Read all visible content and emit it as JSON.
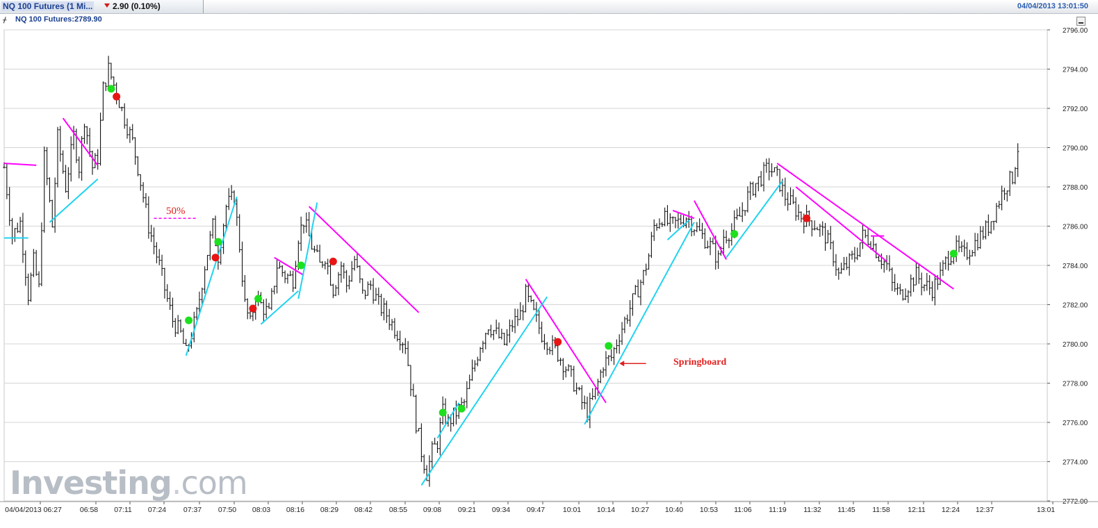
{
  "header": {
    "tab_title": "NQ 100 Futures (1 Mi...",
    "change": "2.90 (0.10%)",
    "timestamp": "04/04/2013 13:01:50",
    "instrument": "NQ 100 Futures:2789.90"
  },
  "watermark": {
    "brand": "Investing",
    "suffix": "com"
  },
  "colors": {
    "bars": "#111111",
    "grid": "#d4d4d4",
    "down_trend": "#ff00ff",
    "up_trend": "#1fd3f0",
    "buy_dot": "#1ee01e",
    "sell_dot": "#e81515",
    "annotation": "#e0201f"
  },
  "chart_data": {
    "type": "bar",
    "title": "NQ 100 Futures (1 Min)",
    "ylim": [
      2772,
      2796
    ],
    "y_ticks": [
      "2772.00",
      "2774.00",
      "2776.00",
      "2778.00",
      "2780.00",
      "2782.00",
      "2784.00",
      "2786.00",
      "2788.00",
      "2790.00",
      "2792.00",
      "2794.00",
      "2796.00"
    ],
    "x_ticks": [
      "04/04/2013 06:27",
      "06:58",
      "07:11",
      "07:24",
      "07:37",
      "07:50",
      "08:03",
      "08:16",
      "08:29",
      "08:42",
      "08:55",
      "09:08",
      "09:21",
      "09:34",
      "09:47",
      "10:01",
      "10:14",
      "10:27",
      "10:40",
      "10:53",
      "11:06",
      "11:19",
      "11:32",
      "11:45",
      "11:58",
      "12:11",
      "12:24",
      "12:37",
      "13:01"
    ],
    "x_range": [
      0,
      390
    ],
    "price_path": [
      [
        0,
        2789.0
      ],
      [
        3,
        2785.5
      ],
      [
        6,
        2786.2
      ],
      [
        9,
        2782.5
      ],
      [
        11,
        2784.2
      ],
      [
        13,
        2782.8
      ],
      [
        15,
        2789.5
      ],
      [
        18,
        2786.0
      ],
      [
        20,
        2790.5
      ],
      [
        23,
        2788.0
      ],
      [
        26,
        2790.6
      ],
      [
        28,
        2789.0
      ],
      [
        30,
        2791.5
      ],
      [
        33,
        2789.0
      ],
      [
        35,
        2789.5
      ],
      [
        37,
        2793.0
      ],
      [
        39,
        2794.0
      ],
      [
        42,
        2792.8
      ],
      [
        45,
        2791.5
      ],
      [
        48,
        2790.3
      ],
      [
        50,
        2789.0
      ],
      [
        54,
        2786.0
      ],
      [
        58,
        2784.0
      ],
      [
        60,
        2782.8
      ],
      [
        63,
        2781.2
      ],
      [
        66,
        2780.5
      ],
      [
        68,
        2779.5
      ],
      [
        72,
        2781.5
      ],
      [
        75,
        2784.0
      ],
      [
        78,
        2786.0
      ],
      [
        80,
        2784.5
      ],
      [
        83,
        2787.0
      ],
      [
        86,
        2787.5
      ],
      [
        88,
        2785.0
      ],
      [
        90,
        2782.0
      ],
      [
        92,
        2781.0
      ],
      [
        94,
        2782.5
      ],
      [
        96,
        2782.0
      ],
      [
        99,
        2781.5
      ],
      [
        102,
        2784.0
      ],
      [
        105,
        2783.5
      ],
      [
        108,
        2783.3
      ],
      [
        110,
        2785.5
      ],
      [
        112,
        2786.3
      ],
      [
        115,
        2785.0
      ],
      [
        118,
        2784.0
      ],
      [
        120,
        2784.5
      ],
      [
        123,
        2782.8
      ],
      [
        126,
        2784.0
      ],
      [
        128,
        2783.0
      ],
      [
        131,
        2784.3
      ],
      [
        134,
        2782.5
      ],
      [
        137,
        2783.0
      ],
      [
        140,
        2782.0
      ],
      [
        143,
        2781.5
      ],
      [
        146,
        2780.8
      ],
      [
        150,
        2780.0
      ],
      [
        152,
        2778.0
      ],
      [
        154,
        2776.0
      ],
      [
        156,
        2774.5
      ],
      [
        158,
        2773.4
      ],
      [
        160,
        2774.5
      ],
      [
        162,
        2775.0
      ],
      [
        164,
        2776.5
      ],
      [
        166,
        2776.0
      ],
      [
        169,
        2776.5
      ],
      [
        172,
        2777.0
      ],
      [
        175,
        2778.5
      ],
      [
        178,
        2780.0
      ],
      [
        181,
        2781.0
      ],
      [
        184,
        2780.5
      ],
      [
        187,
        2780.0
      ],
      [
        190,
        2781.0
      ],
      [
        193,
        2781.5
      ],
      [
        195,
        2782.5
      ],
      [
        198,
        2781.5
      ],
      [
        201,
        2780.5
      ],
      [
        204,
        2780.0
      ],
      [
        207,
        2779.5
      ],
      [
        210,
        2778.8
      ],
      [
        213,
        2778.0
      ],
      [
        216,
        2777.0
      ],
      [
        218,
        2776.5
      ],
      [
        221,
        2777.5
      ],
      [
        224,
        2779.0
      ],
      [
        227,
        2779.3
      ],
      [
        230,
        2780.5
      ],
      [
        233,
        2781.5
      ],
      [
        236,
        2782.5
      ],
      [
        239,
        2783.5
      ],
      [
        241,
        2784.5
      ],
      [
        243,
        2786.0
      ],
      [
        246,
        2786.5
      ],
      [
        249,
        2786.0
      ],
      [
        252,
        2786.2
      ],
      [
        255,
        2786.5
      ],
      [
        258,
        2786.0
      ],
      [
        261,
        2785.5
      ],
      [
        264,
        2785.0
      ],
      [
        267,
        2784.3
      ],
      [
        269,
        2785.5
      ],
      [
        272,
        2785.8
      ],
      [
        275,
        2786.5
      ],
      [
        278,
        2787.5
      ],
      [
        280,
        2788.0
      ],
      [
        283,
        2788.5
      ],
      [
        286,
        2789.0
      ],
      [
        289,
        2788.5
      ],
      [
        292,
        2787.5
      ],
      [
        295,
        2787.0
      ],
      [
        298,
        2786.5
      ],
      [
        301,
        2786.3
      ],
      [
        304,
        2786.0
      ],
      [
        307,
        2785.5
      ],
      [
        310,
        2784.5
      ],
      [
        312,
        2783.5
      ],
      [
        315,
        2784.0
      ],
      [
        318,
        2784.5
      ],
      [
        321,
        2785.5
      ],
      [
        324,
        2785.3
      ],
      [
        327,
        2784.5
      ],
      [
        330,
        2784.0
      ],
      [
        332,
        2783.0
      ],
      [
        335,
        2782.5
      ],
      [
        338,
        2783.0
      ],
      [
        341,
        2783.5
      ],
      [
        344,
        2783.0
      ],
      [
        347,
        2782.8
      ],
      [
        350,
        2783.5
      ],
      [
        353,
        2784.5
      ],
      [
        356,
        2784.8
      ],
      [
        359,
        2784.5
      ],
      [
        362,
        2785.0
      ],
      [
        365,
        2785.5
      ],
      [
        368,
        2786.0
      ],
      [
        371,
        2787.0
      ],
      [
        374,
        2788.0
      ],
      [
        377,
        2788.5
      ],
      [
        379,
        2790.0
      ]
    ],
    "buy_signals": [
      [
        40,
        2793.0
      ],
      [
        69,
        2781.2
      ],
      [
        80,
        2785.2
      ],
      [
        95,
        2782.3
      ],
      [
        111,
        2784.0
      ],
      [
        164,
        2776.5
      ],
      [
        171,
        2776.7
      ],
      [
        226,
        2779.9
      ],
      [
        273,
        2785.6
      ],
      [
        355,
        2784.6
      ]
    ],
    "sell_signals": [
      [
        42,
        2792.6
      ],
      [
        79,
        2784.4
      ],
      [
        93,
        2781.8
      ],
      [
        123,
        2784.2
      ],
      [
        207,
        2780.1
      ],
      [
        300,
        2786.4
      ]
    ],
    "down_trendlines": [
      [
        22,
        2791.5,
        35,
        2789.1
      ],
      [
        114,
        2787.0,
        155,
        2781.6
      ],
      [
        101,
        2784.4,
        112,
        2783.5
      ],
      [
        195,
        2783.3,
        225,
        2777.0
      ],
      [
        250,
        2786.8,
        258,
        2786.4
      ],
      [
        258,
        2787.3,
        270,
        2784.3
      ],
      [
        289,
        2789.2,
        355,
        2782.8
      ],
      [
        296,
        2788.0,
        330,
        2784.2
      ],
      [
        324,
        2785.5,
        329,
        2785.5
      ],
      [
        0,
        2789.2,
        12,
        2789.1
      ]
    ],
    "up_trendlines": [
      [
        17,
        2786.2,
        35,
        2788.4
      ],
      [
        68,
        2779.4,
        87,
        2787.5
      ],
      [
        96,
        2781.0,
        110,
        2782.7
      ],
      [
        110,
        2782.3,
        117,
        2787.2
      ],
      [
        156,
        2772.8,
        203,
        2782.4
      ],
      [
        162,
        2775.2,
        170,
        2777.0
      ],
      [
        217,
        2775.9,
        258,
        2786.2
      ],
      [
        270,
        2784.4,
        291,
        2788.3
      ],
      [
        248,
        2785.3,
        256,
        2786.3
      ],
      [
        0,
        2785.4,
        9,
        2785.4
      ]
    ],
    "fifty_line": [
      56,
      2786.4,
      72,
      2786.4
    ],
    "springboard_arrow": [
      240,
      2779.0,
      230,
      2779.0
    ],
    "annotations": [
      "50%",
      "Springboard"
    ]
  }
}
